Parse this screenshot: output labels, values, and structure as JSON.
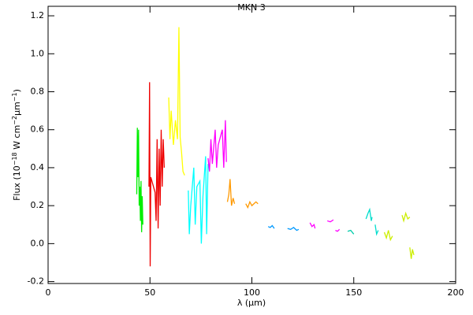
{
  "chart_data": {
    "type": "line",
    "title": "MKN 3",
    "xlabel": "λ (μm)",
    "ylabel": [
      "Flux (10",
      "−18",
      " W cm",
      "−2",
      "μm",
      "−1",
      ")"
    ],
    "xlim": [
      0,
      200
    ],
    "xticks": [
      0,
      50,
      100,
      150,
      200
    ],
    "ylim": [
      -0.21,
      1.25
    ],
    "yticks": [
      {
        "value": -0.2,
        "label": "-0.2"
      },
      {
        "value": 0,
        "label": "0.0"
      },
      {
        "value": 0.2,
        "label": "0.2"
      },
      {
        "value": 0.4,
        "label": "0.4"
      },
      {
        "value": 0.6,
        "label": "0.6"
      },
      {
        "value": 0.8,
        "label": "0.8"
      },
      {
        "value": 1.0,
        "label": "1.0"
      },
      {
        "value": 1.2,
        "label": "1.2"
      }
    ],
    "series": [
      {
        "color": "#00ee00",
        "x": [
          43.5,
          43.8,
          44.1,
          44.4,
          44.7,
          45.0,
          45.3,
          45.6,
          45.9,
          46.2,
          46.5
        ],
        "values": [
          0.26,
          0.61,
          0.35,
          0.6,
          0.2,
          0.3,
          0.12,
          0.33,
          0.06,
          0.25,
          0.1
        ]
      },
      {
        "color": "#ee0000",
        "x": [
          49.5,
          49.8,
          50.1,
          50.4,
          52.5,
          53.0,
          53.5,
          54.0,
          54.5,
          55.0,
          55.5,
          56.0,
          56.5,
          57.0
        ],
        "values": [
          0.3,
          0.85,
          -0.12,
          0.35,
          0.27,
          0.12,
          0.55,
          0.08,
          0.5,
          0.2,
          0.6,
          0.3,
          0.55,
          0.4
        ]
      },
      {
        "color": "#ffff00",
        "x": [
          59.2,
          59.8,
          60.4,
          61.5,
          62.5,
          63.5,
          64.2,
          64.8,
          65.5,
          66.2,
          67.0
        ],
        "values": [
          0.77,
          0.55,
          0.7,
          0.52,
          0.65,
          0.55,
          1.14,
          0.56,
          0.48,
          0.38,
          0.36
        ]
      },
      {
        "color": "#00ffff",
        "x": [
          68.8,
          69.3,
          70.0,
          71.5,
          72.2,
          73.0,
          74.5,
          75.2,
          76.0,
          77.3,
          77.8,
          78.5
        ],
        "values": [
          0.28,
          0.05,
          0.2,
          0.4,
          0.1,
          0.3,
          0.33,
          0.0,
          0.25,
          0.46,
          0.05,
          0.42
        ]
      },
      {
        "color": "#ff00ff",
        "x": [
          78.5,
          79.2,
          79.9,
          80.6,
          82.0,
          82.7,
          83.5,
          85.5,
          86.2,
          87.0,
          87.5
        ],
        "values": [
          0.45,
          0.38,
          0.55,
          0.42,
          0.6,
          0.4,
          0.52,
          0.6,
          0.4,
          0.65,
          0.43
        ]
      },
      {
        "color": "#ff9900",
        "x": [
          88.0,
          88.7,
          89.3,
          90.0,
          90.8,
          91.5
        ],
        "values": [
          0.22,
          0.26,
          0.34,
          0.2,
          0.24,
          0.21
        ]
      },
      {
        "color": "#ff9900",
        "x": [
          97.0,
          98.0,
          99.0,
          100.0,
          101.0,
          102.0,
          103.0
        ],
        "values": [
          0.21,
          0.19,
          0.22,
          0.2,
          0.21,
          0.22,
          0.21
        ]
      },
      {
        "color": "#0099ff",
        "x": [
          108.0,
          109.0,
          110.0,
          111.0
        ],
        "values": [
          0.09,
          0.085,
          0.095,
          0.08
        ]
      },
      {
        "color": "#0099ff",
        "x": [
          117.5,
          119.0,
          120.5,
          122.0,
          123.0
        ],
        "values": [
          0.08,
          0.075,
          0.085,
          0.07,
          0.075
        ]
      },
      {
        "color": "#ff00ff",
        "x": [
          128.5,
          129.5,
          130.5,
          131.0
        ],
        "values": [
          0.11,
          0.09,
          0.1,
          0.08
        ]
      },
      {
        "color": "#ff00ff",
        "x": [
          137.0,
          138.5,
          140.0
        ],
        "values": [
          0.12,
          0.115,
          0.125
        ]
      },
      {
        "color": "#ff00ff",
        "x": [
          141.0,
          142.0,
          143.0
        ],
        "values": [
          0.07,
          0.065,
          0.075
        ]
      },
      {
        "color": "#00ccaa",
        "x": [
          147.0,
          148.5,
          150.0
        ],
        "values": [
          0.065,
          0.07,
          0.05
        ]
      },
      {
        "color": "#00ddcc",
        "x": [
          156.0,
          157.0,
          157.8,
          158.6,
          159.0
        ],
        "values": [
          0.13,
          0.16,
          0.18,
          0.12,
          0.14
        ]
      },
      {
        "color": "#00ddcc",
        "x": [
          160.5,
          161.2,
          162.0
        ],
        "values": [
          0.1,
          0.05,
          0.07
        ]
      },
      {
        "color": "#ccee00",
        "x": [
          165.0,
          166.0,
          167.0,
          168.0,
          169.0
        ],
        "values": [
          0.06,
          0.03,
          0.07,
          0.02,
          0.04
        ]
      },
      {
        "color": "#ccee00",
        "x": [
          173.7,
          174.5,
          175.5,
          176.5,
          177.5
        ],
        "values": [
          0.15,
          0.12,
          0.16,
          0.13,
          0.14
        ]
      },
      {
        "color": "#ccee00",
        "x": [
          177.5,
          178.2,
          178.8,
          179.5
        ],
        "values": [
          -0.02,
          -0.08,
          -0.03,
          -0.06
        ]
      }
    ]
  }
}
